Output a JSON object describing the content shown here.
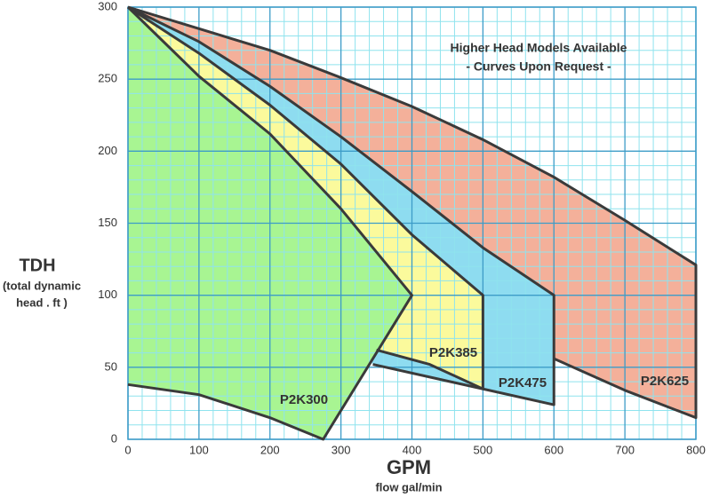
{
  "chart_data": {
    "type": "area",
    "y_label": "TDH",
    "y_label_sub": [
      "(total dynamic",
      "head . ft )"
    ],
    "x_label": "GPM",
    "x_label_sub": "flow gal/min",
    "annotation": [
      "Higher Head Models Available",
      "- Curves Upon Request -"
    ],
    "xlim": [
      0,
      800
    ],
    "xticks": [
      0,
      100,
      200,
      300,
      400,
      500,
      600,
      700,
      800
    ],
    "ylim": [
      0,
      300
    ],
    "yticks": [
      0,
      50,
      100,
      150,
      200,
      250,
      300
    ],
    "grid": true,
    "series": [
      {
        "name": "P2K300",
        "color": "#a8f592",
        "x": [
          0,
          100,
          200,
          300,
          400,
          275,
          200,
          100,
          0
        ],
        "values": [
          300,
          252,
          212,
          160,
          100,
          0,
          15,
          31,
          38
        ]
      },
      {
        "name": "P2K385",
        "color": "#fbfa9c",
        "x": [
          0,
          100,
          200,
          300,
          400,
          500,
          500,
          425,
          350
        ],
        "values": [
          300,
          268,
          232,
          191,
          142,
          100,
          35,
          52,
          62
        ]
      },
      {
        "name": "P2K475",
        "color": "#8edcf0",
        "x": [
          0,
          100,
          200,
          300,
          400,
          500,
          600,
          600,
          345
        ],
        "values": [
          300,
          276,
          245,
          210,
          172,
          133,
          100,
          24,
          52
        ]
      },
      {
        "name": "P2K625",
        "color": "#f4b09a",
        "x": [
          0,
          100,
          200,
          300,
          400,
          500,
          600,
          700,
          800,
          800,
          700,
          600
        ],
        "values": [
          300,
          285,
          270,
          251,
          231,
          208,
          182,
          152,
          121,
          15,
          34,
          56
        ]
      }
    ]
  }
}
